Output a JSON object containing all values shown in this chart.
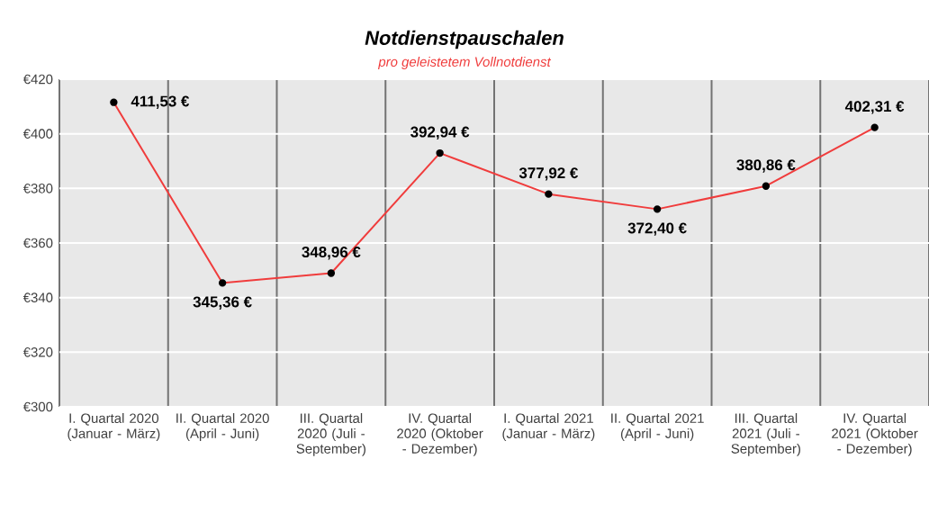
{
  "chart_data": {
    "type": "line",
    "title": "Notdienstpauschalen",
    "subtitle": "pro geleistetem Vollnotdienst",
    "categories": [
      "I. Quartal 2020 (Januar - März)",
      "II. Quartal 2020 (April - Juni)",
      "III. Quartal 2020 (Juli - September)",
      "IV. Quartal 2020 (Oktober - Dezember)",
      "I. Quartal 2021 (Januar - März)",
      "II. Quartal 2021 (April - Juni)",
      "III. Quartal 2021 (Juli - September)",
      "IV. Quartal 2021 (Oktober - Dezember)"
    ],
    "values": [
      411.53,
      345.36,
      348.96,
      392.94,
      377.92,
      372.4,
      380.86,
      402.31
    ],
    "value_labels": [
      "411,53 €",
      "345,36 €",
      "348,96 €",
      "392,94 €",
      "377,92 €",
      "372,40 €",
      "380,86 €",
      "402,31 €"
    ],
    "color": "#f03c3c",
    "marker": "circle",
    "line_style": "solid",
    "grid": true,
    "ylim": [
      300,
      420
    ],
    "yticks": [
      {
        "value": 300,
        "label": "€300"
      },
      {
        "value": 320,
        "label": "€320"
      },
      {
        "value": 340,
        "label": "€340"
      },
      {
        "value": 360,
        "label": "€360"
      },
      {
        "value": 380,
        "label": "€380"
      },
      {
        "value": 400,
        "label": "€400"
      },
      {
        "value": 420,
        "label": "€420"
      }
    ]
  }
}
